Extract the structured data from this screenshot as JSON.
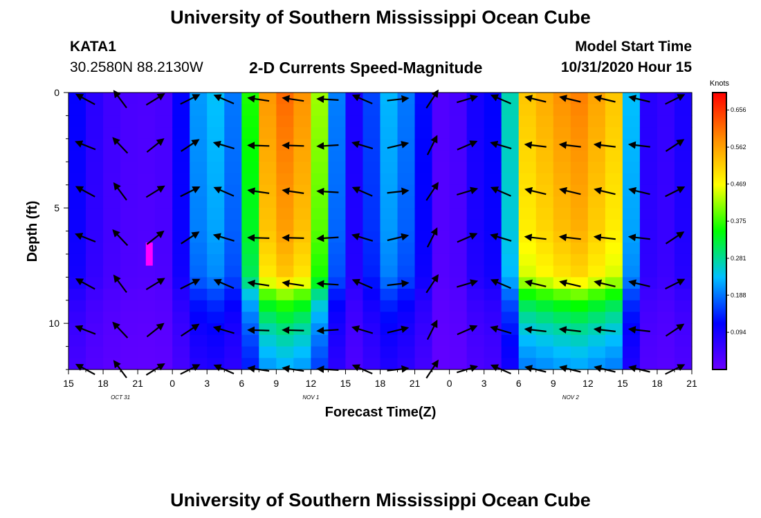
{
  "header": {
    "title": "University of Southern Mississippi Ocean Cube",
    "footer_title": "University of Southern Mississippi Ocean Cube",
    "station_id": "KATA1",
    "station_coords": "30.2580N 88.2130W",
    "plot_title": "2-D Currents Speed-Magnitude",
    "model_start_label": "Model Start Time",
    "model_start_value": "10/31/2020 Hour 15"
  },
  "colors": {
    "arrow": "#000000",
    "highlight": "#ff00ff",
    "scale": [
      "#6a00ff",
      "#0000ff",
      "#00bfff",
      "#00ff00",
      "#ffff00",
      "#ff8c00",
      "#ff0000"
    ]
  },
  "chart_data": {
    "type": "heatmap",
    "title": "2-D Currents Speed-Magnitude",
    "xlabel": "Forecast Time(Z)",
    "ylabel": "Depth (ft)",
    "ylim": [
      0,
      12
    ],
    "y_inverted": true,
    "x_range_hours": [
      0,
      54
    ],
    "x_tick_labels": [
      "15",
      "18",
      "21",
      "0",
      "3",
      "6",
      "9",
      "12",
      "15",
      "18",
      "21",
      "0",
      "3",
      "6",
      "9",
      "12",
      "15",
      "18",
      "21"
    ],
    "y_ticks": [
      0,
      5,
      10
    ],
    "date_labels": [
      {
        "label": "OCT 31",
        "hour": 4.5
      },
      {
        "label": "NOV 1",
        "hour": 21
      },
      {
        "label": "NOV 2",
        "hour": 43.5
      }
    ],
    "colorbar": {
      "unit": "Knots",
      "min": 0,
      "max": 0.7,
      "ticks": [
        "0.656",
        "0.562",
        "0.469",
        "0.375",
        "0.281",
        "0.188",
        "0.094"
      ],
      "tick_values": [
        0.656,
        0.562,
        0.469,
        0.375,
        0.281,
        0.188,
        0.094
      ]
    },
    "speed_by_hour": [
      {
        "h": 0,
        "v": 0.15
      },
      {
        "h": 1.2,
        "v": 0.09
      },
      {
        "h": 3.5,
        "v": 0.05
      },
      {
        "h": 6,
        "v": 0.03
      },
      {
        "h": 8.5,
        "v": 0.04
      },
      {
        "h": 9.6,
        "v": 0.1
      },
      {
        "h": 10.6,
        "v": 0.2
      },
      {
        "h": 13,
        "v": 0.24
      },
      {
        "h": 14.5,
        "v": 0.18
      },
      {
        "h": 15,
        "v": 0.12
      },
      {
        "h": 15.5,
        "v": 0.3
      },
      {
        "h": 16.5,
        "v": 0.55
      },
      {
        "h": 19,
        "v": 0.62
      },
      {
        "h": 21,
        "v": 0.55
      },
      {
        "h": 22,
        "v": 0.38
      },
      {
        "h": 23.2,
        "v": 0.2
      },
      {
        "h": 24.3,
        "v": 0.07
      },
      {
        "h": 26.5,
        "v": 0.17
      },
      {
        "h": 28,
        "v": 0.24
      },
      {
        "h": 30.5,
        "v": 0.14
      },
      {
        "h": 32,
        "v": 0.03
      },
      {
        "h": 33.3,
        "v": 0.02
      },
      {
        "h": 35,
        "v": 0.09
      },
      {
        "h": 37,
        "v": 0.12
      },
      {
        "h": 38.5,
        "v": 0.3
      },
      {
        "h": 39.5,
        "v": 0.52
      },
      {
        "h": 44,
        "v": 0.6
      },
      {
        "h": 47.5,
        "v": 0.52
      },
      {
        "h": 48.5,
        "v": 0.28
      },
      {
        "h": 49.5,
        "v": 0.1
      },
      {
        "h": 51,
        "v": 0.05
      },
      {
        "h": 53,
        "v": 0.08
      },
      {
        "h": 54,
        "v": 0.12
      }
    ],
    "depth_profile": [
      {
        "d": 0,
        "f": 1.0
      },
      {
        "d": 3,
        "f": 0.96
      },
      {
        "d": 6,
        "f": 0.92
      },
      {
        "d": 8,
        "f": 0.85
      },
      {
        "d": 9,
        "f": 0.62
      },
      {
        "d": 10,
        "f": 0.5
      },
      {
        "d": 11,
        "f": 0.42
      },
      {
        "d": 12,
        "f": 0.36
      }
    ],
    "highlight_cell": {
      "hour": 7,
      "depth_from": 6.5,
      "depth_to": 7.5
    },
    "vectors": {
      "hours": [
        1.5,
        4.5,
        7.5,
        10.5,
        13.5,
        16.5,
        19.5,
        22.5,
        25.5,
        28.5,
        31.5,
        34.5,
        37.5,
        40.5,
        43.5,
        46.5,
        49.5,
        52.5
      ],
      "depths": [
        0.3,
        2.3,
        4.3,
        6.3,
        8.3,
        10.3,
        12.0
      ],
      "angles_deg": [
        155,
        130,
        35,
        30,
        160,
        175,
        175,
        180,
        160,
        10,
        60,
        20,
        160,
        170,
        170,
        170,
        170,
        30
      ]
    }
  }
}
